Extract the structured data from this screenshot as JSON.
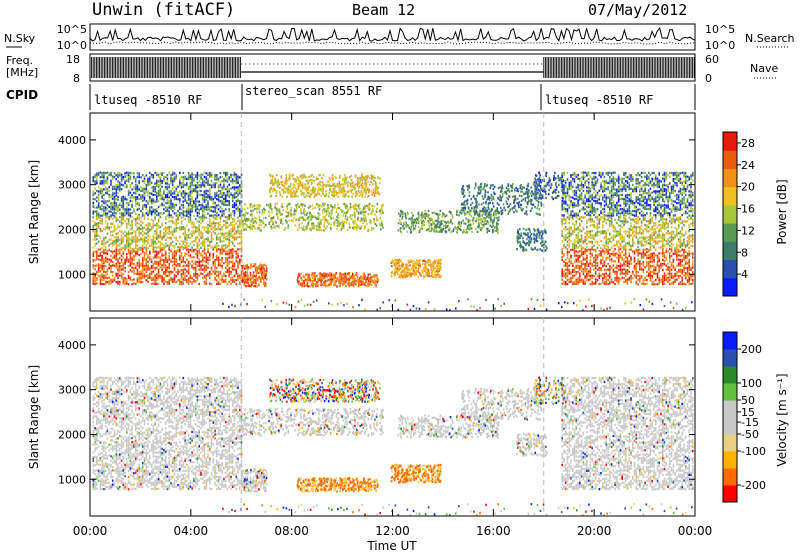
{
  "header": {
    "station": "Unwin (fitACF)",
    "beam": "Beam 12",
    "date": "07/May/2012"
  },
  "noise_panel": {
    "left_label": "N.Sky",
    "right_label": "N.Search",
    "left_ticks": [
      "10^5",
      "10^0"
    ],
    "right_ticks": [
      "10^5",
      "10^0"
    ]
  },
  "freq_panel": {
    "left_label_line1": "Freq.",
    "left_label_line2": "[MHz]",
    "right_label": "Nave",
    "left_ticks": [
      "18",
      "8"
    ],
    "right_ticks": [
      "60",
      "0"
    ]
  },
  "cpid_panel": {
    "label": "CPID",
    "segments": [
      "ltuseq -8510 RF",
      "stereo_scan 8551 RF",
      "ltuseq -8510 RF"
    ]
  },
  "colors": {
    "power_scale": [
      "#0a1aff",
      "#2a4fb0",
      "#3d7c6a",
      "#5a9a55",
      "#a8c63a",
      "#f0c020",
      "#f09018",
      "#e85a10",
      "#e81a10"
    ],
    "velocity_scale": [
      "#ff0000",
      "#ff6a00",
      "#ffb000",
      "#e8d080",
      "#c8c8c8",
      "#c8c8c8",
      "#60c040",
      "#2a8a2a",
      "#2a4fb0",
      "#0a1aff"
    ]
  },
  "chart_data": [
    {
      "type": "heatmap",
      "title": "",
      "quantity": "Power",
      "ylabel": "Slant Range [km]",
      "y_ticks": [
        1000,
        2000,
        3000,
        4000
      ],
      "ylim": [
        180,
        4600
      ],
      "colorbar_label": "Power [dB]",
      "colorbar_ticks": [
        4,
        8,
        12,
        16,
        20,
        24,
        28
      ],
      "colorbar_range": [
        0,
        30
      ],
      "description_values": "backscatter power between roughly 700 and 3300 km slant range"
    },
    {
      "type": "heatmap",
      "title": "",
      "quantity": "Velocity",
      "ylabel": "Slant Range [km]",
      "y_ticks": [
        1000,
        2000,
        3000,
        4000
      ],
      "ylim": [
        180,
        4600
      ],
      "colorbar_label": "Velocity [m s⁻¹]",
      "colorbar_ticks": [
        -200,
        -100,
        -50,
        -15,
        15,
        50,
        100,
        200
      ],
      "colorbar_range": [
        -250,
        250
      ]
    }
  ],
  "time_axis": {
    "label": "Time UT",
    "ticks": [
      "00:00",
      "04:00",
      "08:00",
      "12:00",
      "16:00",
      "20:00",
      "00:00"
    ],
    "hours": [
      0,
      4,
      8,
      12,
      16,
      20,
      24
    ],
    "mode_change_hours": [
      6,
      18
    ]
  }
}
